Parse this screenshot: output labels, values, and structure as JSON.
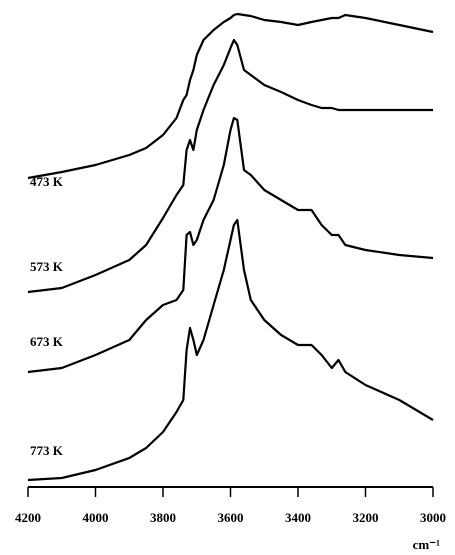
{
  "chart_data": {
    "type": "line",
    "x_label": "cm⁻¹",
    "x": [
      4200,
      4100,
      4000,
      3900,
      3850,
      3800,
      3760,
      3740,
      3730,
      3720,
      3710,
      3700,
      3680,
      3650,
      3620,
      3600,
      3590,
      3580,
      3560,
      3540,
      3500,
      3450,
      3400,
      3360,
      3330,
      3300,
      3280,
      3260,
      3200,
      3100,
      3000
    ],
    "series": [
      {
        "name": "473 K",
        "color": "#000000",
        "values": [
          307,
          313,
          320,
          330,
          337,
          350,
          367,
          385,
          390,
          405,
          415,
          430,
          445,
          455,
          463,
          467,
          470,
          471,
          470,
          469,
          465,
          463,
          460,
          463,
          465,
          467,
          467,
          470,
          467,
          460,
          453
        ]
      },
      {
        "name": "573 K",
        "color": "#000000",
        "values": [
          193,
          197,
          210,
          225,
          240,
          267,
          290,
          300,
          335,
          345,
          335,
          355,
          375,
          400,
          420,
          437,
          445,
          440,
          415,
          410,
          400,
          393,
          385,
          380,
          377,
          377,
          375,
          375,
          375,
          375,
          375
        ]
      },
      {
        "name": "673 K",
        "color": "#000000",
        "values": [
          113,
          117,
          130,
          145,
          165,
          180,
          185,
          195,
          250,
          253,
          240,
          245,
          265,
          285,
          320,
          355,
          367,
          365,
          315,
          310,
          295,
          285,
          275,
          275,
          260,
          250,
          250,
          240,
          235,
          230,
          227
        ]
      },
      {
        "name": "773 K",
        "color": "#000000",
        "values": [
          5,
          7,
          15,
          27,
          37,
          53,
          73,
          85,
          135,
          157,
          145,
          130,
          145,
          180,
          215,
          245,
          260,
          265,
          215,
          185,
          165,
          150,
          140,
          140,
          130,
          117,
          125,
          113,
          100,
          85,
          65
        ]
      }
    ],
    "xlim": [
      4200,
      3000
    ],
    "xticks": [
      4200,
      4000,
      3800,
      3600,
      3400,
      3200,
      3000
    ],
    "ylim": [
      0,
      475
    ]
  }
}
